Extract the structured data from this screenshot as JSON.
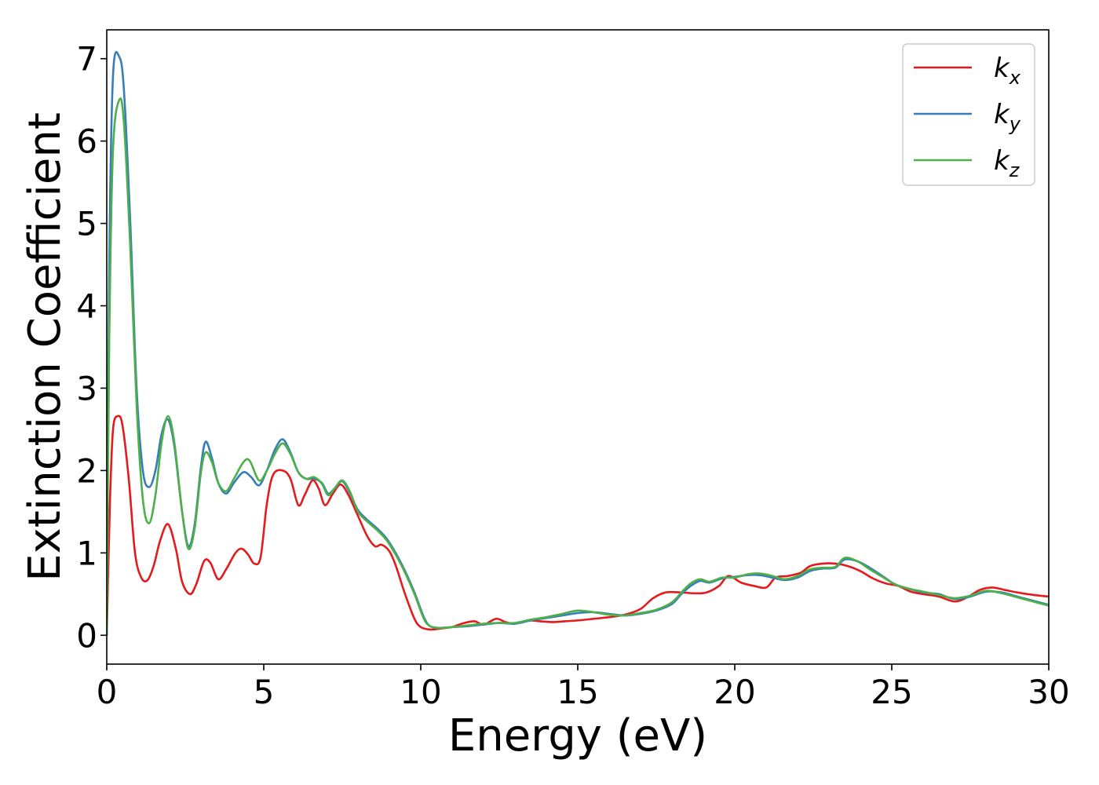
{
  "chart_data": {
    "type": "line",
    "title": "",
    "xlabel": "Energy (eV)",
    "ylabel": "Extinction Coefficient",
    "xlim": [
      0,
      30
    ],
    "ylim": [
      -0.35,
      7.35
    ],
    "xticks": [
      0,
      5,
      10,
      15,
      20,
      25,
      30
    ],
    "yticks": [
      0,
      1,
      2,
      3,
      4,
      5,
      6,
      7
    ],
    "grid": false,
    "legend_position": "top-right",
    "series": [
      {
        "name": "k_x",
        "label_main": "k",
        "label_sub": "x",
        "color": "#e41a1c",
        "points": [
          [
            0,
            0
          ],
          [
            0.1,
            1.6
          ],
          [
            0.2,
            2.5
          ],
          [
            0.35,
            2.66
          ],
          [
            0.5,
            2.55
          ],
          [
            0.7,
            1.9
          ],
          [
            0.9,
            1.0
          ],
          [
            1.1,
            0.7
          ],
          [
            1.3,
            0.67
          ],
          [
            1.5,
            0.85
          ],
          [
            1.7,
            1.15
          ],
          [
            1.95,
            1.35
          ],
          [
            2.2,
            1.05
          ],
          [
            2.4,
            0.65
          ],
          [
            2.65,
            0.5
          ],
          [
            2.85,
            0.62
          ],
          [
            3.1,
            0.9
          ],
          [
            3.3,
            0.88
          ],
          [
            3.55,
            0.68
          ],
          [
            3.8,
            0.8
          ],
          [
            4.1,
            1.0
          ],
          [
            4.3,
            1.05
          ],
          [
            4.5,
            0.98
          ],
          [
            4.7,
            0.87
          ],
          [
            4.9,
            0.95
          ],
          [
            5.1,
            1.6
          ],
          [
            5.3,
            1.95
          ],
          [
            5.6,
            2.0
          ],
          [
            5.85,
            1.9
          ],
          [
            6.1,
            1.58
          ],
          [
            6.3,
            1.7
          ],
          [
            6.55,
            1.88
          ],
          [
            6.75,
            1.78
          ],
          [
            6.95,
            1.58
          ],
          [
            7.2,
            1.72
          ],
          [
            7.45,
            1.83
          ],
          [
            7.7,
            1.7
          ],
          [
            8.0,
            1.45
          ],
          [
            8.3,
            1.2
          ],
          [
            8.55,
            1.08
          ],
          [
            8.75,
            1.1
          ],
          [
            9.0,
            1.02
          ],
          [
            9.2,
            0.85
          ],
          [
            9.5,
            0.5
          ],
          [
            9.8,
            0.2
          ],
          [
            10.0,
            0.1
          ],
          [
            10.3,
            0.07
          ],
          [
            10.6,
            0.08
          ],
          [
            11.0,
            0.1
          ],
          [
            11.3,
            0.14
          ],
          [
            11.7,
            0.17
          ],
          [
            12.0,
            0.13
          ],
          [
            12.4,
            0.2
          ],
          [
            12.7,
            0.16
          ],
          [
            13.0,
            0.14
          ],
          [
            13.4,
            0.18
          ],
          [
            13.8,
            0.17
          ],
          [
            14.2,
            0.16
          ],
          [
            14.6,
            0.17
          ],
          [
            15.0,
            0.18
          ],
          [
            15.5,
            0.2
          ],
          [
            16.0,
            0.22
          ],
          [
            16.5,
            0.25
          ],
          [
            17.0,
            0.32
          ],
          [
            17.4,
            0.45
          ],
          [
            17.8,
            0.52
          ],
          [
            18.3,
            0.52
          ],
          [
            18.7,
            0.51
          ],
          [
            19.1,
            0.52
          ],
          [
            19.5,
            0.6
          ],
          [
            19.8,
            0.72
          ],
          [
            20.2,
            0.64
          ],
          [
            20.6,
            0.6
          ],
          [
            21.0,
            0.58
          ],
          [
            21.3,
            0.7
          ],
          [
            21.7,
            0.72
          ],
          [
            22.1,
            0.76
          ],
          [
            22.4,
            0.84
          ],
          [
            22.8,
            0.87
          ],
          [
            23.2,
            0.87
          ],
          [
            23.6,
            0.84
          ],
          [
            24.0,
            0.78
          ],
          [
            24.4,
            0.69
          ],
          [
            24.8,
            0.63
          ],
          [
            25.2,
            0.6
          ],
          [
            25.6,
            0.53
          ],
          [
            26.0,
            0.5
          ],
          [
            26.5,
            0.47
          ],
          [
            27.0,
            0.41
          ],
          [
            27.4,
            0.46
          ],
          [
            27.8,
            0.55
          ],
          [
            28.2,
            0.58
          ],
          [
            28.6,
            0.55
          ],
          [
            29.0,
            0.52
          ],
          [
            29.5,
            0.49
          ],
          [
            30.0,
            0.47
          ]
        ]
      },
      {
        "name": "k_y",
        "label_main": "k",
        "label_sub": "y",
        "color": "#377eb8",
        "points": [
          [
            0,
            0
          ],
          [
            0.08,
            4.5
          ],
          [
            0.2,
            6.8
          ],
          [
            0.4,
            7.02
          ],
          [
            0.55,
            6.6
          ],
          [
            0.75,
            5.0
          ],
          [
            0.95,
            3.0
          ],
          [
            1.15,
            2.0
          ],
          [
            1.35,
            1.8
          ],
          [
            1.55,
            2.0
          ],
          [
            1.75,
            2.45
          ],
          [
            1.95,
            2.62
          ],
          [
            2.15,
            2.3
          ],
          [
            2.4,
            1.5
          ],
          [
            2.6,
            1.08
          ],
          [
            2.8,
            1.35
          ],
          [
            3.0,
            2.05
          ],
          [
            3.15,
            2.35
          ],
          [
            3.35,
            2.15
          ],
          [
            3.55,
            1.85
          ],
          [
            3.8,
            1.72
          ],
          [
            4.05,
            1.85
          ],
          [
            4.35,
            1.98
          ],
          [
            4.6,
            1.92
          ],
          [
            4.85,
            1.82
          ],
          [
            5.1,
            2.0
          ],
          [
            5.35,
            2.25
          ],
          [
            5.6,
            2.38
          ],
          [
            5.85,
            2.22
          ],
          [
            6.1,
            1.98
          ],
          [
            6.35,
            1.9
          ],
          [
            6.6,
            1.9
          ],
          [
            6.85,
            1.85
          ],
          [
            7.05,
            1.72
          ],
          [
            7.25,
            1.78
          ],
          [
            7.5,
            1.87
          ],
          [
            7.75,
            1.72
          ],
          [
            8.0,
            1.52
          ],
          [
            8.3,
            1.4
          ],
          [
            8.6,
            1.3
          ],
          [
            8.9,
            1.18
          ],
          [
            9.2,
            1.0
          ],
          [
            9.5,
            0.78
          ],
          [
            9.8,
            0.52
          ],
          [
            10.1,
            0.22
          ],
          [
            10.3,
            0.11
          ],
          [
            10.6,
            0.09
          ],
          [
            11.0,
            0.1
          ],
          [
            11.5,
            0.11
          ],
          [
            12.0,
            0.13
          ],
          [
            12.5,
            0.15
          ],
          [
            13.0,
            0.14
          ],
          [
            13.5,
            0.18
          ],
          [
            14.0,
            0.21
          ],
          [
            14.5,
            0.24
          ],
          [
            15.0,
            0.27
          ],
          [
            15.5,
            0.28
          ],
          [
            16.0,
            0.26
          ],
          [
            16.5,
            0.24
          ],
          [
            17.0,
            0.26
          ],
          [
            17.5,
            0.3
          ],
          [
            18.0,
            0.38
          ],
          [
            18.3,
            0.5
          ],
          [
            18.6,
            0.6
          ],
          [
            18.9,
            0.66
          ],
          [
            19.2,
            0.64
          ],
          [
            19.6,
            0.69
          ],
          [
            20.0,
            0.71
          ],
          [
            20.4,
            0.73
          ],
          [
            20.8,
            0.73
          ],
          [
            21.2,
            0.7
          ],
          [
            21.6,
            0.67
          ],
          [
            22.0,
            0.7
          ],
          [
            22.4,
            0.78
          ],
          [
            22.8,
            0.81
          ],
          [
            23.2,
            0.82
          ],
          [
            23.5,
            0.92
          ],
          [
            23.9,
            0.9
          ],
          [
            24.3,
            0.82
          ],
          [
            24.7,
            0.72
          ],
          [
            25.1,
            0.62
          ],
          [
            25.5,
            0.57
          ],
          [
            26.0,
            0.52
          ],
          [
            26.5,
            0.5
          ],
          [
            27.0,
            0.44
          ],
          [
            27.5,
            0.47
          ],
          [
            28.0,
            0.53
          ],
          [
            28.5,
            0.52
          ],
          [
            29.0,
            0.47
          ],
          [
            29.5,
            0.42
          ],
          [
            30.0,
            0.37
          ]
        ]
      },
      {
        "name": "k_z",
        "label_main": "k",
        "label_sub": "z",
        "color": "#4daf4a",
        "points": [
          [
            0,
            0
          ],
          [
            0.08,
            3.6
          ],
          [
            0.2,
            5.9
          ],
          [
            0.4,
            6.5
          ],
          [
            0.55,
            6.2
          ],
          [
            0.75,
            4.7
          ],
          [
            0.95,
            2.8
          ],
          [
            1.15,
            1.65
          ],
          [
            1.35,
            1.36
          ],
          [
            1.55,
            1.7
          ],
          [
            1.75,
            2.35
          ],
          [
            1.95,
            2.66
          ],
          [
            2.15,
            2.35
          ],
          [
            2.4,
            1.5
          ],
          [
            2.6,
            1.05
          ],
          [
            2.8,
            1.3
          ],
          [
            3.0,
            1.98
          ],
          [
            3.15,
            2.22
          ],
          [
            3.35,
            2.1
          ],
          [
            3.55,
            1.85
          ],
          [
            3.8,
            1.75
          ],
          [
            4.05,
            1.9
          ],
          [
            4.35,
            2.1
          ],
          [
            4.55,
            2.12
          ],
          [
            4.85,
            1.88
          ],
          [
            5.1,
            2.0
          ],
          [
            5.35,
            2.2
          ],
          [
            5.6,
            2.33
          ],
          [
            5.85,
            2.2
          ],
          [
            6.1,
            1.98
          ],
          [
            6.35,
            1.9
          ],
          [
            6.6,
            1.92
          ],
          [
            6.85,
            1.84
          ],
          [
            7.05,
            1.7
          ],
          [
            7.25,
            1.78
          ],
          [
            7.5,
            1.88
          ],
          [
            7.75,
            1.74
          ],
          [
            8.0,
            1.5
          ],
          [
            8.3,
            1.38
          ],
          [
            8.6,
            1.28
          ],
          [
            8.9,
            1.16
          ],
          [
            9.2,
            0.98
          ],
          [
            9.5,
            0.76
          ],
          [
            9.8,
            0.5
          ],
          [
            10.1,
            0.2
          ],
          [
            10.3,
            0.11
          ],
          [
            10.6,
            0.09
          ],
          [
            11.0,
            0.1
          ],
          [
            11.5,
            0.12
          ],
          [
            12.0,
            0.14
          ],
          [
            12.5,
            0.15
          ],
          [
            13.0,
            0.15
          ],
          [
            13.5,
            0.19
          ],
          [
            14.0,
            0.22
          ],
          [
            14.5,
            0.26
          ],
          [
            15.0,
            0.3
          ],
          [
            15.5,
            0.28
          ],
          [
            16.0,
            0.25
          ],
          [
            16.5,
            0.24
          ],
          [
            17.0,
            0.27
          ],
          [
            17.5,
            0.31
          ],
          [
            18.0,
            0.4
          ],
          [
            18.3,
            0.52
          ],
          [
            18.6,
            0.63
          ],
          [
            18.9,
            0.68
          ],
          [
            19.2,
            0.65
          ],
          [
            19.6,
            0.7
          ],
          [
            20.0,
            0.7
          ],
          [
            20.4,
            0.74
          ],
          [
            20.8,
            0.75
          ],
          [
            21.2,
            0.72
          ],
          [
            21.6,
            0.68
          ],
          [
            22.0,
            0.72
          ],
          [
            22.4,
            0.8
          ],
          [
            22.8,
            0.82
          ],
          [
            23.2,
            0.83
          ],
          [
            23.5,
            0.94
          ],
          [
            23.9,
            0.9
          ],
          [
            24.3,
            0.8
          ],
          [
            24.7,
            0.71
          ],
          [
            25.1,
            0.62
          ],
          [
            25.5,
            0.57
          ],
          [
            26.0,
            0.53
          ],
          [
            26.5,
            0.49
          ],
          [
            27.0,
            0.45
          ],
          [
            27.5,
            0.48
          ],
          [
            28.0,
            0.54
          ],
          [
            28.5,
            0.51
          ],
          [
            29.0,
            0.46
          ],
          [
            29.5,
            0.41
          ],
          [
            30.0,
            0.36
          ]
        ]
      }
    ]
  }
}
